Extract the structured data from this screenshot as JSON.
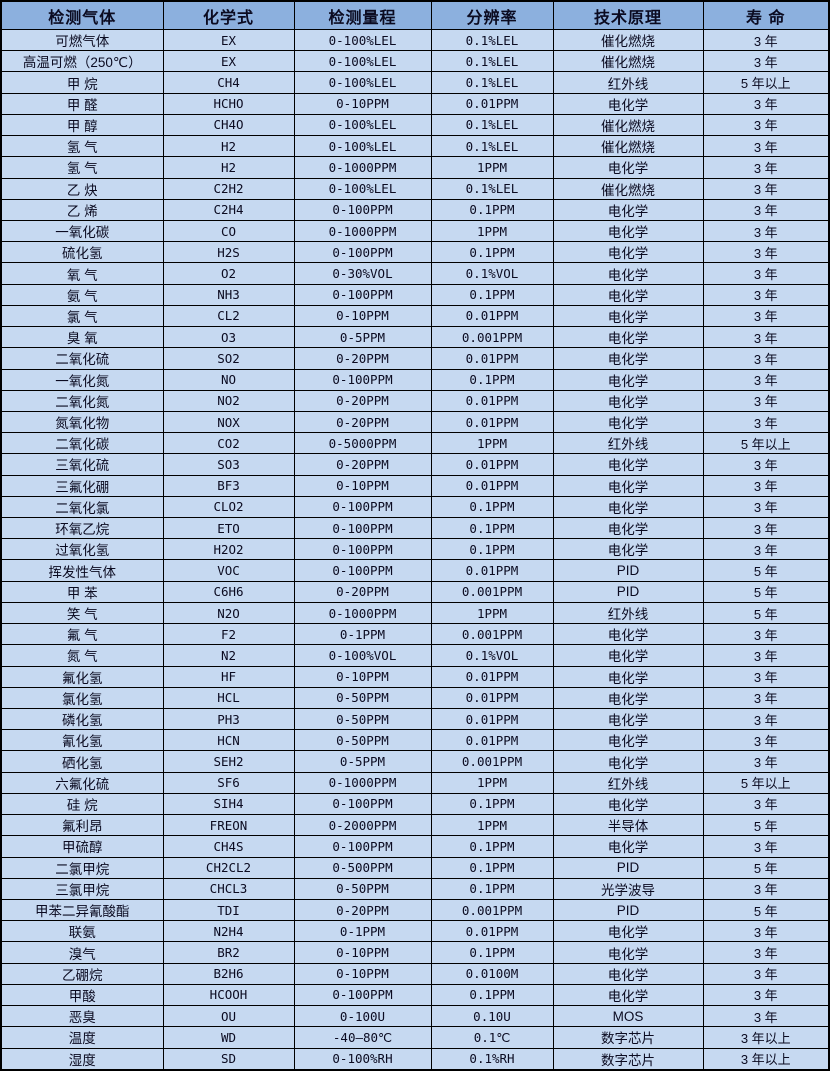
{
  "colors": {
    "header_bg": "#8CB0DE",
    "row_bg": "#C6D9F1",
    "border": "#000000",
    "text": "#0b0b21"
  },
  "table": {
    "keys": [
      "gas",
      "formula",
      "range",
      "resolution",
      "principle",
      "lifespan"
    ],
    "headers": [
      "检测气体",
      "化学式",
      "检测量程",
      "分辨率",
      "技术原理",
      "寿 命"
    ],
    "rows": [
      [
        "可燃气体",
        "EX",
        "0-100%LEL",
        "0.1%LEL",
        "催化燃烧",
        "3 年"
      ],
      [
        "高温可燃（250℃）",
        "EX",
        "0-100%LEL",
        "0.1%LEL",
        "催化燃烧",
        "3 年"
      ],
      [
        "甲 烷",
        "CH4",
        "0-100%LEL",
        "0.1%LEL",
        "红外线",
        "5 年以上"
      ],
      [
        "甲 醛",
        "HCHO",
        "0-10PPM",
        "0.01PPM",
        "电化学",
        "3 年"
      ],
      [
        "甲 醇",
        "CH4O",
        "0-100%LEL",
        "0.1%LEL",
        "催化燃烧",
        "3 年"
      ],
      [
        "氢 气",
        "H2",
        "0-100%LEL",
        "0.1%LEL",
        "催化燃烧",
        "3 年"
      ],
      [
        "氢 气",
        "H2",
        "0-1000PPM",
        "1PPM",
        "电化学",
        "3 年"
      ],
      [
        "乙 炔",
        "C2H2",
        "0-100%LEL",
        "0.1%LEL",
        "催化燃烧",
        "3 年"
      ],
      [
        "乙 烯",
        "C2H4",
        "0-100PPM",
        "0.1PPM",
        "电化学",
        "3 年"
      ],
      [
        "一氧化碳",
        "CO",
        "0-1000PPM",
        "1PPM",
        "电化学",
        "3 年"
      ],
      [
        "硫化氢",
        "H2S",
        "0-100PPM",
        "0.1PPM",
        "电化学",
        "3 年"
      ],
      [
        "氧 气",
        "O2",
        "0-30%VOL",
        "0.1%VOL",
        "电化学",
        "3 年"
      ],
      [
        "氨 气",
        "NH3",
        "0-100PPM",
        "0.1PPM",
        "电化学",
        "3 年"
      ],
      [
        "氯 气",
        "CL2",
        "0-10PPM",
        "0.01PPM",
        "电化学",
        "3 年"
      ],
      [
        "臭 氧",
        "O3",
        "0-5PPM",
        "0.001PPM",
        "电化学",
        "3 年"
      ],
      [
        "二氧化硫",
        "SO2",
        "0-20PPM",
        "0.01PPM",
        "电化学",
        "3 年"
      ],
      [
        "一氧化氮",
        "NO",
        "0-100PPM",
        "0.1PPM",
        "电化学",
        "3 年"
      ],
      [
        "二氧化氮",
        "NO2",
        "0-20PPM",
        "0.01PPM",
        "电化学",
        "3 年"
      ],
      [
        "氮氧化物",
        "NOX",
        "0-20PPM",
        "0.01PPM",
        "电化学",
        "3 年"
      ],
      [
        "二氧化碳",
        "CO2",
        "0-5000PPM",
        "1PPM",
        "红外线",
        "5 年以上"
      ],
      [
        "三氧化硫",
        "SO3",
        "0-20PPM",
        "0.01PPM",
        "电化学",
        "3 年"
      ],
      [
        "三氟化硼",
        "BF3",
        "0-10PPM",
        "0.01PPM",
        "电化学",
        "3 年"
      ],
      [
        "二氧化氯",
        "CLO2",
        "0-100PPM",
        "0.1PPM",
        "电化学",
        "3 年"
      ],
      [
        "环氧乙烷",
        "ETO",
        "0-100PPM",
        "0.1PPM",
        "电化学",
        "3 年"
      ],
      [
        "过氧化氢",
        "H2O2",
        "0-100PPM",
        "0.1PPM",
        "电化学",
        "3 年"
      ],
      [
        "挥发性气体",
        "VOC",
        "0-100PPM",
        "0.01PPM",
        "PID",
        "5 年"
      ],
      [
        "甲 苯",
        "C6H6",
        "0-20PPM",
        "0.001PPM",
        "PID",
        "5 年"
      ],
      [
        "笑 气",
        "N2O",
        "0-1000PPM",
        "1PPM",
        "红外线",
        "5 年"
      ],
      [
        "氟 气",
        "F2",
        "0-1PPM",
        "0.001PPM",
        "电化学",
        "3 年"
      ],
      [
        "氮 气",
        "N2",
        "0-100%VOL",
        "0.1%VOL",
        "电化学",
        "3 年"
      ],
      [
        "氟化氢",
        "HF",
        "0-10PPM",
        "0.01PPM",
        "电化学",
        "3 年"
      ],
      [
        "氯化氢",
        "HCL",
        "0-50PPM",
        "0.01PPM",
        "电化学",
        "3 年"
      ],
      [
        "磷化氢",
        "PH3",
        "0-50PPM",
        "0.01PPM",
        "电化学",
        "3 年"
      ],
      [
        "氰化氢",
        "HCN",
        "0-50PPM",
        "0.01PPM",
        "电化学",
        "3 年"
      ],
      [
        "硒化氢",
        "SEH2",
        "0-5PPM",
        "0.001PPM",
        "电化学",
        "3 年"
      ],
      [
        "六氟化硫",
        "SF6",
        "0-1000PPM",
        "1PPM",
        "红外线",
        "5 年以上"
      ],
      [
        "硅 烷",
        "SIH4",
        "0-100PPM",
        "0.1PPM",
        "电化学",
        "3 年"
      ],
      [
        "氟利昂",
        "FREON",
        "0-2000PPM",
        "1PPM",
        "半导体",
        "5 年"
      ],
      [
        "甲硫醇",
        "CH4S",
        "0-100PPM",
        "0.1PPM",
        "电化学",
        "3 年"
      ],
      [
        "二氯甲烷",
        "CH2CL2",
        "0-500PPM",
        "0.1PPM",
        "PID",
        "5 年"
      ],
      [
        "三氯甲烷",
        "CHCL3",
        "0-50PPM",
        "0.1PPM",
        "光学波导",
        "3 年"
      ],
      [
        "甲苯二异氰酸酯",
        "TDI",
        "0-20PPM",
        "0.001PPM",
        "PID",
        "5 年"
      ],
      [
        "联氨",
        "N2H4",
        "0-1PPM",
        "0.01PPM",
        "电化学",
        "3 年"
      ],
      [
        "溴气",
        "BR2",
        "0-10PPM",
        "0.1PPM",
        "电化学",
        "3 年"
      ],
      [
        "乙硼烷",
        "B2H6",
        "0-10PPM",
        "0.0100M",
        "电化学",
        "3 年"
      ],
      [
        "甲酸",
        "HCOOH",
        "0-100PPM",
        "0.1PPM",
        "电化学",
        "3 年"
      ],
      [
        "恶臭",
        "OU",
        "0-100U",
        "0.10U",
        "MOS",
        "3 年"
      ],
      [
        "温度",
        "WD",
        "-40—80℃",
        "0.1℃",
        "数字芯片",
        "3 年以上"
      ],
      [
        "湿度",
        "SD",
        "0-100%RH",
        "0.1%RH",
        "数字芯片",
        "3 年以上"
      ]
    ]
  }
}
